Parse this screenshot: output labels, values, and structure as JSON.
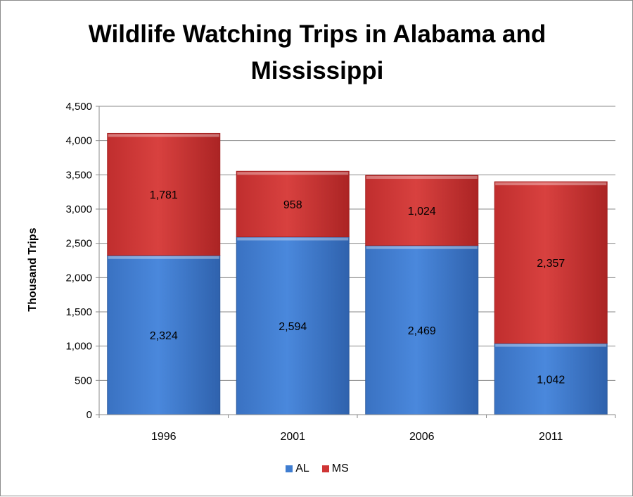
{
  "chart_data": {
    "type": "bar",
    "stacked": true,
    "title": "Wildlife Watching Trips in Alabama and Mississippi",
    "xlabel": "",
    "ylabel": "Thousand Trips",
    "categories": [
      "1996",
      "2001",
      "2006",
      "2011"
    ],
    "series": [
      {
        "name": "AL",
        "values": [
          2324,
          2594,
          2469,
          1042
        ],
        "labels": [
          "2,324",
          "2,594",
          "2,469",
          "1,042"
        ],
        "color": "#3f7dd0"
      },
      {
        "name": "MS",
        "values": [
          1781,
          958,
          1024,
          2357
        ],
        "labels": [
          "1,781",
          "958",
          "1,024",
          "2,357"
        ],
        "color": "#cf3535"
      }
    ],
    "ylim": [
      0,
      4500
    ],
    "yticks": [
      0,
      500,
      1000,
      1500,
      2000,
      2500,
      3000,
      3500,
      4000,
      4500
    ],
    "ytick_labels": [
      "0",
      "500",
      "1,000",
      "1,500",
      "2,000",
      "2,500",
      "3,000",
      "3,500",
      "4,000",
      "4,500"
    ],
    "grid": true,
    "legend_position": "bottom"
  }
}
